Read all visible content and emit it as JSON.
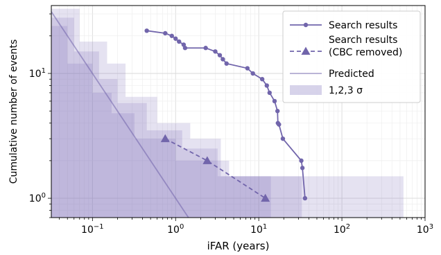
{
  "chart_data": {
    "type": "line",
    "xlabel": "iFAR (years)",
    "ylabel": "Cumulative number of events",
    "x_scale": "log",
    "y_scale": "log",
    "xlim": [
      0.032,
      1000
    ],
    "ylim": [
      0.7,
      35
    ],
    "grid": true,
    "legend_position": "top-right",
    "x_ticks": [
      {
        "value": 0.1,
        "base": "10",
        "exp": "−1"
      },
      {
        "value": 1,
        "base": "10",
        "exp": "0"
      },
      {
        "value": 10,
        "base": "10",
        "exp": "1"
      },
      {
        "value": 100,
        "base": "10",
        "exp": "2"
      },
      {
        "value": 1000,
        "base": "10",
        "exp": "3"
      }
    ],
    "y_ticks": [
      {
        "value": 1,
        "base": "10",
        "exp": "0"
      },
      {
        "value": 10,
        "base": "10",
        "exp": "1"
      }
    ],
    "colors": {
      "series": "#7165ab",
      "band": "#7b6cb8"
    },
    "series": [
      {
        "name": "Search results",
        "style": "solid-circle",
        "points": [
          [
            0.45,
            22
          ],
          [
            0.75,
            21
          ],
          [
            0.9,
            20
          ],
          [
            1.0,
            19
          ],
          [
            1.1,
            18
          ],
          [
            1.25,
            17
          ],
          [
            1.3,
            16
          ],
          [
            2.3,
            16
          ],
          [
            3.0,
            15
          ],
          [
            3.4,
            14
          ],
          [
            3.7,
            13
          ],
          [
            4.1,
            12
          ],
          [
            7.3,
            11
          ],
          [
            8.5,
            10
          ],
          [
            11.0,
            9
          ],
          [
            12.5,
            8
          ],
          [
            13.5,
            7
          ],
          [
            15.5,
            6
          ],
          [
            16.8,
            5
          ],
          [
            17.0,
            4
          ],
          [
            17.5,
            3.9
          ],
          [
            19.5,
            3
          ],
          [
            32.5,
            2
          ],
          [
            33.5,
            1.75
          ],
          [
            36,
            1
          ]
        ]
      },
      {
        "name": "Search results\n(CBC removed)",
        "style": "dashed-triangle",
        "points": [
          [
            0.75,
            3
          ],
          [
            2.4,
            2
          ],
          [
            12.0,
            1
          ]
        ]
      },
      {
        "name": "Predicted",
        "style": "line",
        "points": [
          [
            0.032,
            31.25
          ],
          [
            1.0,
            1.0
          ],
          [
            3.0,
            0.333
          ]
        ]
      }
    ],
    "bands": {
      "name": "1,2,3 σ",
      "sigma": [
        {
          "level": 3,
          "steps": [
            [
              0.032,
              33,
              0.5
            ],
            [
              0.07,
              18,
              0.5
            ],
            [
              0.15,
              12,
              0.5
            ],
            [
              0.25,
              6.5,
              0.5
            ],
            [
              0.6,
              4,
              0.5
            ],
            [
              1.5,
              3,
              0.5
            ],
            [
              3.5,
              1.5,
              0.5
            ],
            [
              550,
              1.5,
              0.5
            ]
          ]
        },
        {
          "level": 2,
          "steps": [
            [
              0.032,
              28,
              0.5
            ],
            [
              0.06,
              15,
              0.5
            ],
            [
              0.12,
              9,
              0.5
            ],
            [
              0.2,
              5.8,
              0.5
            ],
            [
              0.45,
              3.5,
              0.5
            ],
            [
              1.2,
              2.5,
              0.5
            ],
            [
              3.2,
              1.5,
              0.5
            ],
            [
              33,
              1.5,
              0.5
            ]
          ]
        },
        {
          "level": 1,
          "steps": [
            [
              0.032,
              24,
              0.5
            ],
            [
              0.05,
              12,
              0.5
            ],
            [
              0.1,
              7,
              0.5
            ],
            [
              0.17,
              4.8,
              0.5
            ],
            [
              0.32,
              3.0,
              0.5
            ],
            [
              1.0,
              2.0,
              0.5
            ],
            [
              4.4,
              1.5,
              0.5
            ],
            [
              14,
              1.5,
              0.5
            ]
          ]
        }
      ]
    },
    "legend": [
      {
        "label": "Search results",
        "marker": "circle-line"
      },
      {
        "label_lines": [
          "Search results",
          "(CBC removed)"
        ],
        "marker": "triangle-dashed"
      },
      {
        "label": "Predicted",
        "marker": "line"
      },
      {
        "label": "1,2,3 σ",
        "marker": "patch"
      }
    ]
  }
}
